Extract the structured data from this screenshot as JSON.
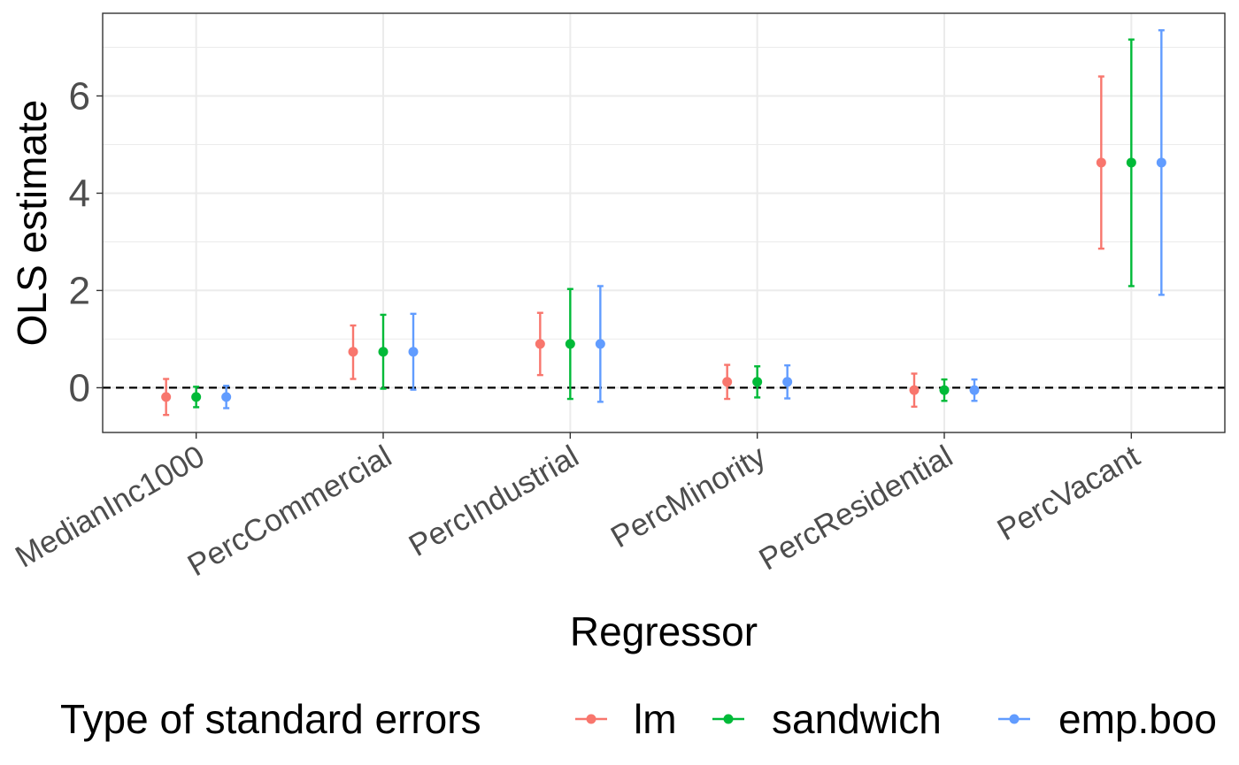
{
  "chart_data": {
    "type": "scatter",
    "title": "",
    "xlabel": "Regressor",
    "ylabel": "OLS estimate",
    "categories": [
      "MedianInc1000",
      "PercCommercial",
      "PercIndustrial",
      "PercMinority",
      "PercResidential",
      "PercVacant"
    ],
    "ylim": [
      -0.92,
      7.7
    ],
    "yticks": [
      0,
      2,
      4,
      6
    ],
    "grid": true,
    "reference_line": {
      "y": 0,
      "style": "dashed"
    },
    "legend": {
      "title": "Type of standard errors",
      "position": "bottom"
    },
    "series": [
      {
        "name": "lm",
        "color": "#F8766D",
        "estimate": [
          -0.19,
          0.74,
          0.9,
          0.12,
          -0.05,
          4.63
        ],
        "lower": [
          -0.56,
          0.18,
          0.26,
          -0.23,
          -0.39,
          2.86
        ],
        "upper": [
          0.18,
          1.28,
          1.54,
          0.47,
          0.29,
          6.4
        ]
      },
      {
        "name": "sandwich",
        "color": "#00BA38",
        "estimate": [
          -0.19,
          0.74,
          0.9,
          0.12,
          -0.05,
          4.63
        ],
        "lower": [
          -0.4,
          -0.02,
          -0.23,
          -0.2,
          -0.27,
          2.09
        ],
        "upper": [
          0.02,
          1.5,
          2.03,
          0.44,
          0.17,
          7.16
        ]
      },
      {
        "name": "emp.boo",
        "color": "#619CFF",
        "estimate": [
          -0.19,
          0.74,
          0.9,
          0.12,
          -0.05,
          4.63
        ],
        "lower": [
          -0.42,
          -0.04,
          -0.29,
          -0.22,
          -0.27,
          1.91
        ],
        "upper": [
          0.04,
          1.52,
          2.09,
          0.46,
          0.17,
          7.35
        ]
      }
    ]
  }
}
